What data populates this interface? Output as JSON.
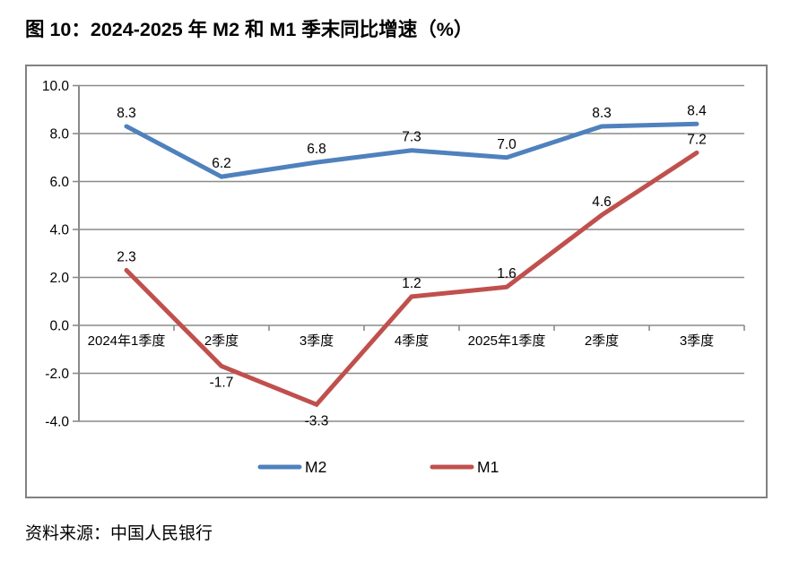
{
  "page": {
    "title": "图 10：2024-2025 年 M2 和 M1 季末同比增速（%）",
    "source": "资料来源：中国人民银行"
  },
  "chart_data": {
    "type": "line",
    "title": "图 10：2024-2025 年 M2 和 M1 季末同比增速（%）",
    "categories": [
      "2024年1季度",
      "2季度",
      "3季度",
      "4季度",
      "2025年1季度",
      "2季度",
      "3季度"
    ],
    "series": [
      {
        "name": "M2",
        "color": "#4F81BD",
        "values": [
          8.3,
          6.2,
          6.8,
          7.3,
          7.0,
          8.3,
          8.4
        ]
      },
      {
        "name": "M1",
        "color": "#C0504D",
        "values": [
          2.3,
          -1.7,
          -3.3,
          1.2,
          1.6,
          4.6,
          7.2
        ]
      }
    ],
    "ylim": [
      -4,
      10
    ],
    "ytick_step": 2,
    "yticks": [
      "10.0",
      "8.0",
      "6.0",
      "4.0",
      "2.0",
      "0.0",
      "-2.0",
      "-4.0"
    ],
    "grid": true,
    "data_labels": true,
    "legend_position": "bottom-inside",
    "axis_color": "#8A8A8A",
    "label_color": "#000000",
    "source": "资料来源：中国人民银行"
  }
}
